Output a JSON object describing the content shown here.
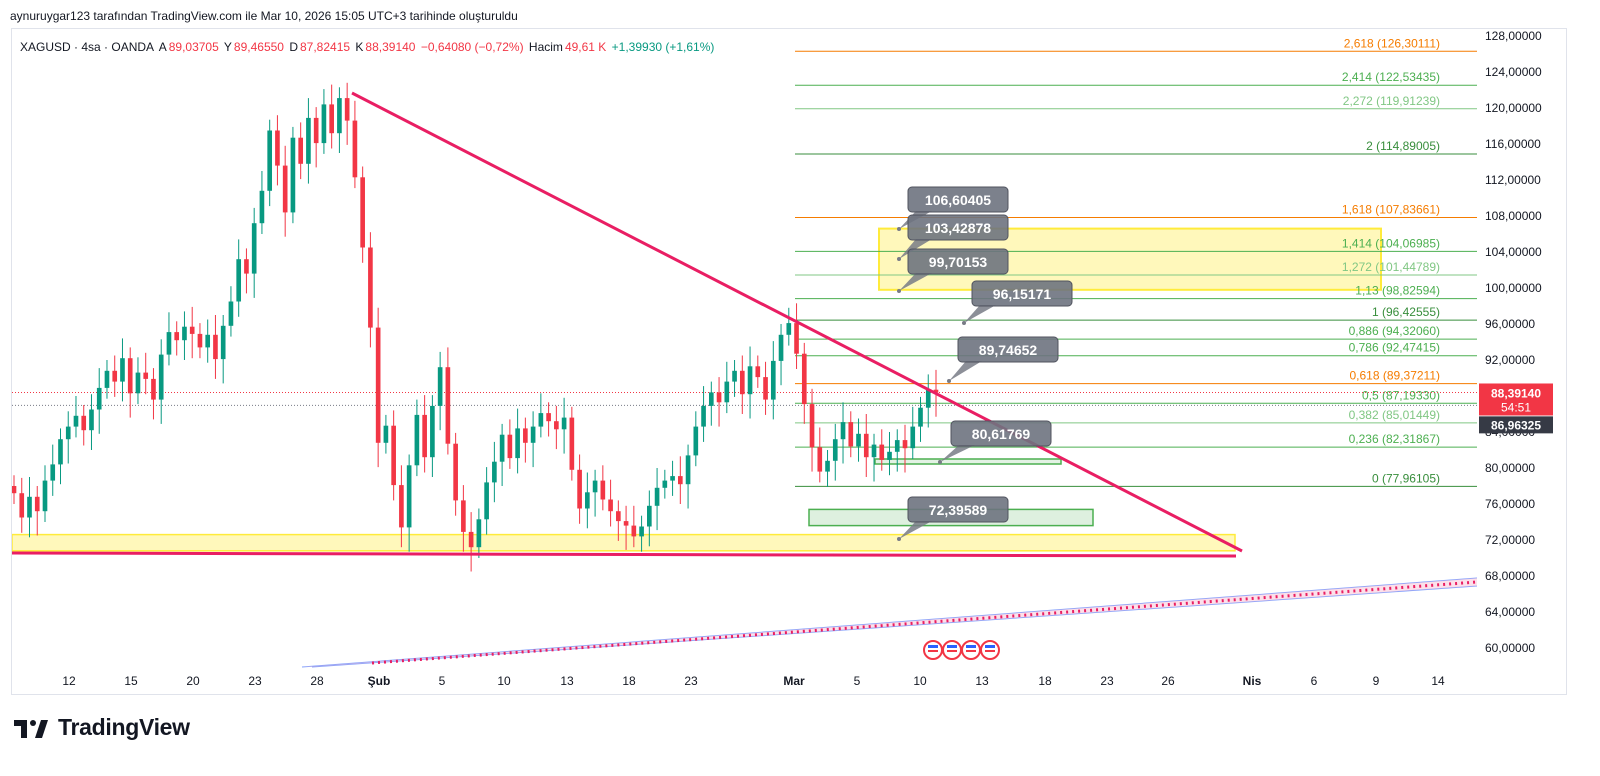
{
  "credit": "aynuruygar123 tarafından TradingView.com ile Mar 10, 2026 15:05 UTC+3 tarihinde oluşturuldu",
  "legend": {
    "symbol": "XAGUSD · 4sa · OANDA",
    "open_label": "A",
    "open": "89,03705",
    "high_label": "Y",
    "high": "89,46550",
    "low_label": "D",
    "low": "87,82415",
    "close_label": "K",
    "close": "88,39140",
    "change": "−0,64080 (−0,72%)",
    "volume_label": "Hacim",
    "volume": "49,61 K",
    "volume_change": "+1,39930 (+1,61%)"
  },
  "footer": {
    "brand": "TradingView"
  },
  "colors": {
    "up": "#089981",
    "down": "#f23645",
    "trendline": "#e91e63",
    "fib_green": "#4caf50",
    "fib_orange": "#f57c00",
    "zone_yellow": "#ffeb3b"
  },
  "chart_data": {
    "type": "candlestick",
    "symbol": "XAGUSD",
    "timeframe": "4sa",
    "ylim": [
      57,
      130
    ],
    "y_ticks": [
      "128,00000",
      "124,00000",
      "120,00000",
      "116,00000",
      "112,00000",
      "108,00000",
      "104,00000",
      "100,00000",
      "96,00000",
      "92,00000",
      "88,00000",
      "84,00000",
      "80,00000",
      "76,00000",
      "72,00000",
      "68,00000",
      "64,00000",
      "60,00000"
    ],
    "x_ticks": [
      "12",
      "15",
      "20",
      "23",
      "28",
      "Şub",
      "5",
      "10",
      "13",
      "18",
      "23",
      "Mar",
      "5",
      "10",
      "13",
      "18",
      "23",
      "26",
      "Nis",
      "6",
      "9",
      "14"
    ],
    "price_tags": [
      {
        "value": "88,39140",
        "sub": "54:51",
        "color": "#f23645"
      },
      {
        "value": "86,96325",
        "color": "#363a45"
      }
    ],
    "fibonacci": [
      {
        "ratio": "2,618",
        "price": 126.30111,
        "label": "2,618 (126,30111)",
        "color": "#f57c00"
      },
      {
        "ratio": "2,414",
        "price": 122.53435,
        "label": "2,414 (122,53435)",
        "color": "#4caf50"
      },
      {
        "ratio": "2,272",
        "price": 119.91239,
        "label": "2,272 (119,91239)",
        "color": "#81c784"
      },
      {
        "ratio": "2",
        "price": 114.89005,
        "label": "2 (114,89005)",
        "color": "#388e3c"
      },
      {
        "ratio": "1,618",
        "price": 107.83661,
        "label": "1,618 (107,83661)",
        "color": "#f57c00"
      },
      {
        "ratio": "1,414",
        "price": 104.06985,
        "label": "1,414 (104,06985)",
        "color": "#4caf50"
      },
      {
        "ratio": "1,272",
        "price": 101.44789,
        "label": "1,272 (101,44789)",
        "color": "#81c784"
      },
      {
        "ratio": "1,13",
        "price": 98.82594,
        "label": "1,13 (98,82594)",
        "color": "#4caf50"
      },
      {
        "ratio": "1",
        "price": 96.42555,
        "label": "1 (96,42555)",
        "color": "#388e3c"
      },
      {
        "ratio": "0,886",
        "price": 94.3206,
        "label": "0,886 (94,32060)",
        "color": "#4caf50"
      },
      {
        "ratio": "0,786",
        "price": 92.47415,
        "label": "0,786 (92,47415)",
        "color": "#4caf50"
      },
      {
        "ratio": "0,618",
        "price": 89.37211,
        "label": "0,618 (89,37211)",
        "color": "#f57c00"
      },
      {
        "ratio": "0,5",
        "price": 87.1933,
        "label": "0,5 (87,19330)",
        "color": "#4caf50"
      },
      {
        "ratio": "0,382",
        "price": 85.01449,
        "label": "0,382 (85,01449)",
        "color": "#81c784"
      },
      {
        "ratio": "0,236",
        "price": 82.31867,
        "label": "0,236 (82,31867)",
        "color": "#4caf50"
      },
      {
        "ratio": "0",
        "price": 77.96105,
        "label": "0 (77,96105)",
        "color": "#388e3c"
      }
    ],
    "callouts": [
      {
        "text": "106,60405",
        "price": 106.60405
      },
      {
        "text": "103,42878",
        "price": 103.42878
      },
      {
        "text": "99,70153",
        "price": 99.70153
      },
      {
        "text": "96,15171",
        "price": 96.15171
      },
      {
        "text": "89,74652",
        "price": 89.74652
      },
      {
        "text": "80,61769",
        "price": 80.61769
      },
      {
        "text": "72,39589",
        "price": 72.39589
      }
    ],
    "zones": [
      {
        "name": "support-zone",
        "from": 70.8,
        "to": 72.6,
        "color": "#ffeb3b"
      },
      {
        "name": "target-zone",
        "from": 99.8,
        "to": 106.6,
        "color": "#ffeb3b"
      }
    ],
    "closes": [
      77.2,
      74.5,
      76.8,
      75.2,
      78.6,
      80.4,
      83.2,
      84.6,
      85.8,
      84.2,
      86.5,
      88.9,
      90.8,
      89.6,
      92.2,
      88.3,
      90.6,
      89.9,
      87.6,
      92.6,
      95.1,
      94.2,
      95.7,
      94.9,
      93.4,
      94.8,
      92.1,
      95.8,
      98.5,
      103.2,
      101.6,
      107.2,
      110.8,
      117.5,
      113.6,
      108.4,
      116.7,
      113.8,
      118.9,
      116.1,
      120.4,
      117.2,
      121.1,
      118.6,
      112.3,
      104.5,
      95.6,
      82.8,
      84.7,
      78.1,
      73.4,
      80.3,
      85.9,
      81.2,
      86.9,
      91.2,
      82.7,
      76.4,
      72.9,
      71.2,
      74.3,
      78.4,
      80.7,
      83.7,
      81.1,
      84.4,
      82.8,
      84.6,
      86.1,
      85.2,
      84.3,
      85.6,
      79.8,
      75.5,
      77.3,
      78.6,
      76.5,
      75.2,
      74.1,
      73.6,
      72.4,
      73.5,
      75.8,
      77.8,
      78.6,
      79.1,
      78.2,
      81.4,
      84.6,
      86.9,
      88.4,
      87.3,
      89.6,
      90.8,
      88.2,
      91.3,
      90.1,
      87.6,
      91.9,
      94.8,
      96.1,
      92.7,
      87.1,
      82.3,
      79.6,
      80.8,
      83.2,
      85.1,
      82.4,
      83.8,
      81.2,
      82.6,
      80.9,
      81.8,
      83.1,
      82.2,
      84.6,
      86.7,
      88.7,
      88.39
    ]
  }
}
